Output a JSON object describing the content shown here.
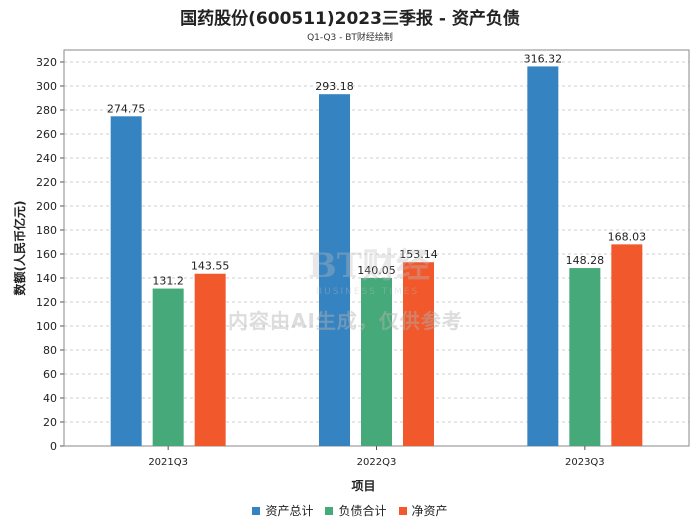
{
  "chart_data": {
    "type": "bar",
    "title": "国药股份(600511)2023三季报 - 资产负债",
    "subtitle": "Q1-Q3 - BT财经绘制",
    "xlabel": "项目",
    "ylabel": "数额(人民币亿元)",
    "categories": [
      "2021Q3",
      "2022Q3",
      "2023Q3"
    ],
    "series": [
      {
        "name": "资产总计",
        "color": "#3683c1",
        "values": [
          274.75,
          293.18,
          316.32
        ],
        "labels": [
          "274.75",
          "293.18",
          "316.32"
        ]
      },
      {
        "name": "负债合计",
        "color": "#45a97a",
        "values": [
          131.2,
          140.05,
          148.28
        ],
        "labels": [
          "131.2",
          "140.05",
          "148.28"
        ]
      },
      {
        "name": "净资产",
        "color": "#f1582b",
        "values": [
          143.55,
          153.14,
          168.03
        ],
        "labels": [
          "143.55",
          "153.14",
          "168.03"
        ]
      }
    ],
    "ylim": [
      0,
      330
    ],
    "yticks": [
      0,
      20,
      40,
      60,
      80,
      100,
      120,
      140,
      160,
      180,
      200,
      220,
      240,
      260,
      280,
      300,
      320
    ],
    "grid": true,
    "legend": "bottom-center"
  },
  "watermark": {
    "logo": "BT财经",
    "logo_sub": "BUSINESS TIMES",
    "notice": "内容由AI生成，仅供参考"
  }
}
